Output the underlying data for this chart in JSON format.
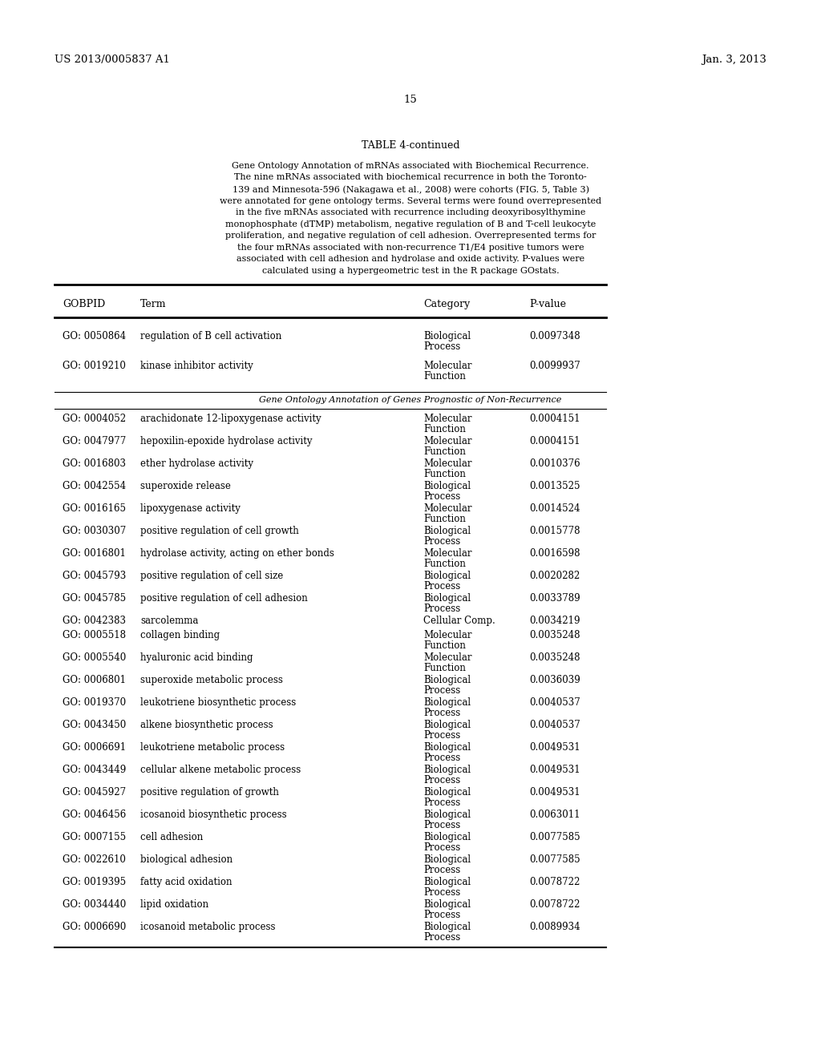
{
  "patent_number": "US 2013/0005837 A1",
  "date": "Jan. 3, 2013",
  "page_number": "15",
  "table_title": "TABLE 4-continued",
  "caption_lines": [
    "Gene Ontology Annotation of mRNAs associated with Biochemical Recurrence.",
    "The nine mRNAs associated with biochemical recurrence in both the Toronto-",
    "139 and Minnesota-596 (Nakagawa et al., 2008) were cohorts (FIG. 5, Table 3)",
    "were annotated for gene ontology terms. Several terms were found overrepresented",
    "in the five mRNAs associated with recurrence including deoxyribosylthymine",
    "monophosphate (dTMP) metabolism, negative regulation of B and T-cell leukocyte",
    "proliferation, and negative regulation of cell adhesion. Overrepresented terms for",
    "the four mRNAs associated with non-recurrence T1/E4 positive tumors were",
    "associated with cell adhesion and hydrolase and oxide activity. P-values were",
    "calculated using a hypergeometric test in the R package GOstats."
  ],
  "col_headers": [
    "GOBPID",
    "Term",
    "Category",
    "P-value"
  ],
  "section_header": "Gene Ontology Annotation of Genes Prognostic of Non-Recurrence",
  "rows_before_section": [
    [
      "GO: 0050864",
      "regulation of B cell activation",
      "Biological",
      "Process",
      "0.0097348"
    ],
    [
      "GO: 0019210",
      "kinase inhibitor activity",
      "Molecular",
      "Function",
      "0.0099937"
    ]
  ],
  "rows_after_section": [
    [
      "GO: 0004052",
      "arachidonate 12-lipoxygenase activity",
      "Molecular",
      "Function",
      "0.0004151"
    ],
    [
      "GO: 0047977",
      "hepoxilin-epoxide hydrolase activity",
      "Molecular",
      "Function",
      "0.0004151"
    ],
    [
      "GO: 0016803",
      "ether hydrolase activity",
      "Molecular",
      "Function",
      "0.0010376"
    ],
    [
      "GO: 0042554",
      "superoxide release",
      "Biological",
      "Process",
      "0.0013525"
    ],
    [
      "GO: 0016165",
      "lipoxygenase activity",
      "Molecular",
      "Function",
      "0.0014524"
    ],
    [
      "GO: 0030307",
      "positive regulation of cell growth",
      "Biological",
      "Process",
      "0.0015778"
    ],
    [
      "GO: 0016801",
      "hydrolase activity, acting on ether bonds",
      "Molecular",
      "Function",
      "0.0016598"
    ],
    [
      "GO: 0045793",
      "positive regulation of cell size",
      "Biological",
      "Process",
      "0.0020282"
    ],
    [
      "GO: 0045785",
      "positive regulation of cell adhesion",
      "Biological",
      "Process",
      "0.0033789"
    ],
    [
      "GO: 0042383",
      "sarcolemma",
      "Cellular Comp.",
      "",
      "0.0034219"
    ],
    [
      "GO: 0005518",
      "collagen binding",
      "Molecular",
      "Function",
      "0.0035248"
    ],
    [
      "GO: 0005540",
      "hyaluronic acid binding",
      "Molecular",
      "Function",
      "0.0035248"
    ],
    [
      "GO: 0006801",
      "superoxide metabolic process",
      "Biological",
      "Process",
      "0.0036039"
    ],
    [
      "GO: 0019370",
      "leukotriene biosynthetic process",
      "Biological",
      "Process",
      "0.0040537"
    ],
    [
      "GO: 0043450",
      "alkene biosynthetic process",
      "Biological",
      "Process",
      "0.0040537"
    ],
    [
      "GO: 0006691",
      "leukotriene metabolic process",
      "Biological",
      "Process",
      "0.0049531"
    ],
    [
      "GO: 0043449",
      "cellular alkene metabolic process",
      "Biological",
      "Process",
      "0.0049531"
    ],
    [
      "GO: 0045927",
      "positive regulation of growth",
      "Biological",
      "Process",
      "0.0049531"
    ],
    [
      "GO: 0046456",
      "icosanoid biosynthetic process",
      "Biological",
      "Process",
      "0.0063011"
    ],
    [
      "GO: 0007155",
      "cell adhesion",
      "Biological",
      "Process",
      "0.0077585"
    ],
    [
      "GO: 0022610",
      "biological adhesion",
      "Biological",
      "Process",
      "0.0077585"
    ],
    [
      "GO: 0019395",
      "fatty acid oxidation",
      "Biological",
      "Process",
      "0.0078722"
    ],
    [
      "GO: 0034440",
      "lipid oxidation",
      "Biological",
      "Process",
      "0.0078722"
    ],
    [
      "GO: 0006690",
      "icosanoid metabolic process",
      "Biological",
      "Process",
      "0.0089934"
    ]
  ],
  "bg_color": "#ffffff",
  "text_color": "#000000"
}
